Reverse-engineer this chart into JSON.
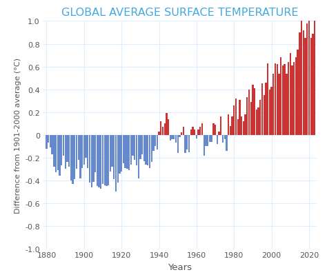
{
  "title": "GLOBAL AVERAGE SURFACE TEMPERATURE",
  "xlabel": "Years",
  "ylabel": "Difference from 1901-2000 average (°C)",
  "title_color": "#44aadd",
  "title_fontsize": 11.5,
  "title_fontweight": "normal",
  "ylabel_fontsize": 8,
  "xlabel_fontsize": 9.5,
  "ylim": [
    -1.0,
    1.0
  ],
  "xlim": [
    1878,
    2024
  ],
  "color_positive": "#cc3333",
  "color_negative": "#6688cc",
  "background_color": "#ffffff",
  "grid_color": "#ddeeff",
  "yticks": [
    -1.0,
    -0.8,
    -0.6,
    -0.4,
    -0.2,
    0,
    0.2,
    0.4,
    0.6,
    0.8,
    1.0
  ],
  "ytick_labels": [
    "-1.0",
    "-0.8",
    "-0.6",
    "-0.4",
    "-0.2",
    "0",
    "0.2",
    "0.4",
    "0.6",
    "0.8",
    "1.0"
  ],
  "xticks": [
    1880,
    1900,
    1920,
    1940,
    1960,
    1980,
    2000,
    2020
  ],
  "years": [
    1880,
    1881,
    1882,
    1883,
    1884,
    1885,
    1886,
    1887,
    1888,
    1889,
    1890,
    1891,
    1892,
    1893,
    1894,
    1895,
    1896,
    1897,
    1898,
    1899,
    1900,
    1901,
    1902,
    1903,
    1904,
    1905,
    1906,
    1907,
    1908,
    1909,
    1910,
    1911,
    1912,
    1913,
    1914,
    1915,
    1916,
    1917,
    1918,
    1919,
    1920,
    1921,
    1922,
    1923,
    1924,
    1925,
    1926,
    1927,
    1928,
    1929,
    1930,
    1931,
    1932,
    1933,
    1934,
    1935,
    1936,
    1937,
    1938,
    1939,
    1940,
    1941,
    1942,
    1943,
    1944,
    1945,
    1946,
    1947,
    1948,
    1949,
    1950,
    1951,
    1952,
    1953,
    1954,
    1955,
    1956,
    1957,
    1958,
    1959,
    1960,
    1961,
    1962,
    1963,
    1964,
    1965,
    1966,
    1967,
    1968,
    1969,
    1970,
    1971,
    1972,
    1973,
    1974,
    1975,
    1976,
    1977,
    1978,
    1979,
    1980,
    1981,
    1982,
    1983,
    1984,
    1985,
    1986,
    1987,
    1988,
    1989,
    1990,
    1991,
    1992,
    1993,
    1994,
    1995,
    1996,
    1997,
    1998,
    1999,
    2000,
    2001,
    2002,
    2003,
    2004,
    2005,
    2006,
    2007,
    2008,
    2009,
    2010,
    2011,
    2012,
    2013,
    2014,
    2015,
    2016,
    2017,
    2018,
    2019,
    2020,
    2021,
    2022,
    2023
  ],
  "anomalies": [
    -0.12,
    -0.07,
    -0.11,
    -0.17,
    -0.28,
    -0.33,
    -0.31,
    -0.36,
    -0.27,
    -0.18,
    -0.3,
    -0.24,
    -0.28,
    -0.4,
    -0.43,
    -0.39,
    -0.3,
    -0.22,
    -0.38,
    -0.29,
    -0.26,
    -0.2,
    -0.29,
    -0.42,
    -0.46,
    -0.41,
    -0.33,
    -0.45,
    -0.46,
    -0.47,
    -0.43,
    -0.44,
    -0.45,
    -0.44,
    -0.32,
    -0.28,
    -0.39,
    -0.5,
    -0.42,
    -0.34,
    -0.32,
    -0.25,
    -0.29,
    -0.3,
    -0.31,
    -0.26,
    -0.18,
    -0.22,
    -0.27,
    -0.38,
    -0.21,
    -0.17,
    -0.23,
    -0.26,
    -0.27,
    -0.29,
    -0.24,
    -0.14,
    -0.1,
    -0.13,
    0.03,
    0.12,
    0.07,
    0.1,
    0.19,
    0.14,
    -0.05,
    -0.04,
    -0.04,
    -0.07,
    -0.16,
    -0.02,
    0.02,
    0.07,
    -0.16,
    -0.13,
    -0.15,
    0.05,
    0.07,
    0.05,
    -0.03,
    0.05,
    0.07,
    0.1,
    -0.18,
    -0.1,
    -0.1,
    -0.06,
    -0.06,
    0.1,
    0.09,
    -0.08,
    0.03,
    0.16,
    -0.07,
    -0.04,
    -0.14,
    0.18,
    0.08,
    0.16,
    0.26,
    0.32,
    0.14,
    0.31,
    0.16,
    0.12,
    0.18,
    0.33,
    0.4,
    0.29,
    0.44,
    0.41,
    0.22,
    0.24,
    0.31,
    0.45,
    0.35,
    0.46,
    0.63,
    0.4,
    0.42,
    0.54,
    0.63,
    0.62,
    0.54,
    0.68,
    0.61,
    0.62,
    0.54,
    0.64,
    0.72,
    0.61,
    0.64,
    0.68,
    0.75,
    0.9,
    1.01,
    0.92,
    0.85,
    0.98,
    1.02,
    0.85,
    0.89,
    1.17
  ]
}
